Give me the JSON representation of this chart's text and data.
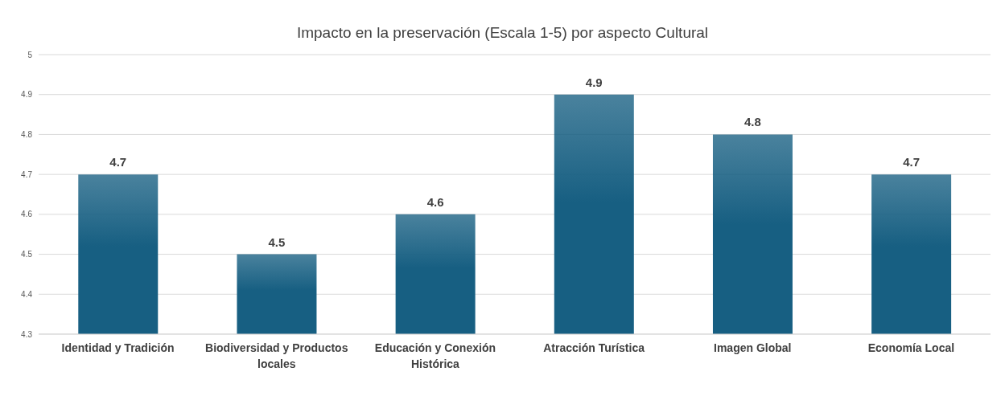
{
  "chart_data": {
    "type": "bar",
    "title": "Impacto en la preservación (Escala 1-5) por aspecto Cultural",
    "categories": [
      "Identidad y Tradición",
      "Biodiversidad y Productos locales",
      "Educación y Conexión Histórica",
      "Atracción Turística",
      "Imagen Global",
      "Economía Local"
    ],
    "values": [
      4.7,
      4.5,
      4.6,
      4.9,
      4.8,
      4.7
    ],
    "color": "#175f82",
    "ylim": [
      4.3,
      5
    ],
    "yticks": [
      4.3,
      4.4,
      4.5,
      4.6,
      4.7,
      4.8,
      4.9,
      5
    ],
    "grid": "y",
    "data_labels": true
  }
}
